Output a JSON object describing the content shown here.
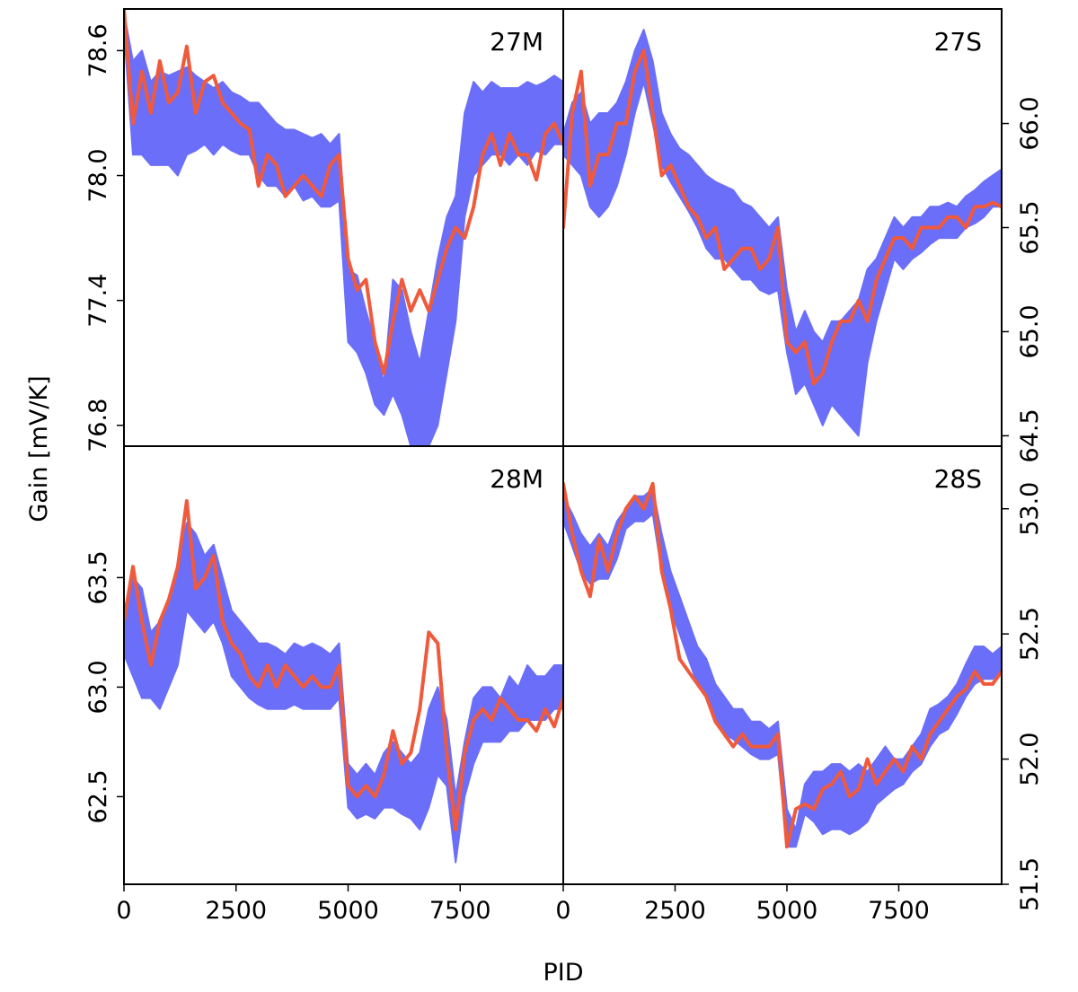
{
  "colors": {
    "band": "#6b6ef8",
    "line": "#f05a3c",
    "axes": "#000000"
  },
  "chart_data": {
    "type": "line",
    "x_label": "PID",
    "y_label": "Gain [mV/K]",
    "xlim": [
      0,
      9800
    ],
    "x_ticks": [
      0,
      2500,
      5000,
      7500
    ],
    "x_tick_labels": [
      "0",
      "2500",
      "5000",
      "7500"
    ],
    "legend": "none",
    "series_description": [
      {
        "name": "band",
        "style": "filled band (blue)"
      },
      {
        "name": "line",
        "style": "solid line (red)"
      }
    ],
    "panels": [
      {
        "label": "27M",
        "position": "top-left",
        "y_axis": "left",
        "ylim": [
          76.7,
          78.8
        ],
        "y_ticks": [
          76.8,
          77.4,
          78.0,
          78.6
        ],
        "y_tick_labels": [
          "76.8",
          "77.4",
          "78.0",
          "78.6"
        ],
        "x": [
          0,
          200,
          400,
          600,
          800,
          1000,
          1200,
          1400,
          1600,
          1800,
          2000,
          2200,
          2400,
          2600,
          2800,
          3000,
          3200,
          3400,
          3600,
          3800,
          4000,
          4200,
          4400,
          4600,
          4800,
          5000,
          5200,
          5400,
          5600,
          5800,
          6000,
          6200,
          6400,
          6600,
          6800,
          7000,
          7200,
          7400,
          7600,
          7800,
          8000,
          8200,
          8400,
          8600,
          8800,
          9000,
          9200,
          9400,
          9600,
          9800
        ],
        "band_upper": [
          78.78,
          78.55,
          78.6,
          78.45,
          78.5,
          78.48,
          78.5,
          78.52,
          78.48,
          78.45,
          78.42,
          78.45,
          78.4,
          78.38,
          78.35,
          78.35,
          78.3,
          78.25,
          78.22,
          78.22,
          78.2,
          78.18,
          78.2,
          78.15,
          78.2,
          77.55,
          77.52,
          77.35,
          77.2,
          77.0,
          77.5,
          77.45,
          77.25,
          77.1,
          77.35,
          77.6,
          77.8,
          77.9,
          78.3,
          78.45,
          78.4,
          78.45,
          78.42,
          78.42,
          78.42,
          78.45,
          78.43,
          78.45,
          78.48,
          78.45
        ],
        "band_lower": [
          78.7,
          78.1,
          78.1,
          78.05,
          78.05,
          78.05,
          78.0,
          78.1,
          78.12,
          78.15,
          78.1,
          78.15,
          78.12,
          78.1,
          78.1,
          78.0,
          77.95,
          77.95,
          77.9,
          77.95,
          77.88,
          77.9,
          77.85,
          77.85,
          77.88,
          77.2,
          77.15,
          77.05,
          76.9,
          76.85,
          76.95,
          76.85,
          76.7,
          76.7,
          76.7,
          76.8,
          77.05,
          77.3,
          77.8,
          78.0,
          78.05,
          78.1,
          78.1,
          78.05,
          78.1,
          78.05,
          78.12,
          78.1,
          78.15,
          78.15
        ],
        "line": [
          78.8,
          78.25,
          78.5,
          78.3,
          78.55,
          78.35,
          78.4,
          78.62,
          78.3,
          78.45,
          78.48,
          78.35,
          78.3,
          78.25,
          78.22,
          77.95,
          78.1,
          78.05,
          77.9,
          77.95,
          78.0,
          77.95,
          77.9,
          78.05,
          78.1,
          77.6,
          77.45,
          77.5,
          77.2,
          77.05,
          77.3,
          77.5,
          77.35,
          77.45,
          77.35,
          77.5,
          77.65,
          77.75,
          77.7,
          77.85,
          78.1,
          78.2,
          78.05,
          78.2,
          78.1,
          78.1,
          77.98,
          78.2,
          78.25,
          78.15
        ]
      },
      {
        "label": "27S",
        "position": "top-right",
        "y_axis": "right",
        "ylim": [
          64.45,
          66.55
        ],
        "y_ticks": [
          64.5,
          65.0,
          65.5,
          66.0
        ],
        "y_tick_labels": [
          "64.5",
          "65.0",
          "65.5",
          "66.0"
        ],
        "x": [
          0,
          200,
          400,
          600,
          800,
          1000,
          1200,
          1400,
          1600,
          1800,
          2000,
          2200,
          2400,
          2600,
          2800,
          3000,
          3200,
          3400,
          3600,
          3800,
          4000,
          4200,
          4400,
          4600,
          4800,
          5000,
          5200,
          5400,
          5600,
          5800,
          6000,
          6200,
          6400,
          6600,
          6800,
          7000,
          7200,
          7400,
          7600,
          7800,
          8000,
          8200,
          8400,
          8600,
          8800,
          9000,
          9200,
          9400,
          9600,
          9800
        ],
        "band_upper": [
          65.95,
          66.1,
          66.15,
          66.0,
          66.05,
          66.05,
          66.1,
          66.2,
          66.35,
          66.45,
          66.3,
          66.05,
          65.95,
          65.88,
          65.85,
          65.8,
          65.75,
          65.72,
          65.7,
          65.68,
          65.62,
          65.6,
          65.55,
          65.5,
          65.55,
          65.2,
          65.0,
          65.1,
          65.0,
          64.95,
          65.05,
          65.05,
          65.1,
          65.15,
          65.3,
          65.35,
          65.45,
          65.55,
          65.5,
          65.55,
          65.55,
          65.6,
          65.6,
          65.62,
          65.6,
          65.65,
          65.68,
          65.72,
          65.75,
          65.78
        ],
        "band_lower": [
          65.85,
          65.8,
          65.75,
          65.6,
          65.55,
          65.6,
          65.7,
          65.85,
          66.05,
          66.2,
          66.0,
          65.8,
          65.72,
          65.65,
          65.58,
          65.5,
          65.4,
          65.35,
          65.35,
          65.3,
          65.25,
          65.25,
          65.2,
          65.18,
          65.2,
          64.9,
          64.7,
          64.75,
          64.65,
          64.55,
          64.65,
          64.6,
          64.55,
          64.5,
          64.85,
          65.05,
          65.2,
          65.35,
          65.3,
          65.35,
          65.38,
          65.42,
          65.45,
          65.45,
          65.45,
          65.5,
          65.52,
          65.55,
          65.6,
          65.6
        ],
        "line": [
          65.5,
          66.05,
          66.25,
          65.7,
          65.85,
          65.85,
          66.0,
          66.0,
          66.25,
          66.35,
          66.05,
          65.75,
          65.8,
          65.7,
          65.6,
          65.55,
          65.45,
          65.5,
          65.3,
          65.35,
          65.4,
          65.4,
          65.3,
          65.35,
          65.5,
          64.95,
          64.9,
          64.95,
          64.75,
          64.8,
          64.95,
          65.05,
          65.05,
          65.15,
          65.05,
          65.25,
          65.35,
          65.45,
          65.45,
          65.4,
          65.5,
          65.5,
          65.5,
          65.55,
          65.55,
          65.5,
          65.6,
          65.6,
          65.62,
          65.6
        ]
      },
      {
        "label": "28M",
        "position": "bottom-left",
        "y_axis": "left",
        "ylim": [
          62.1,
          64.1
        ],
        "y_ticks": [
          62.5,
          63.0,
          63.5
        ],
        "y_tick_labels": [
          "62.5",
          "63.0",
          "63.5"
        ],
        "x": [
          0,
          200,
          400,
          600,
          800,
          1000,
          1200,
          1400,
          1600,
          1800,
          2000,
          2200,
          2400,
          2600,
          2800,
          3000,
          3200,
          3400,
          3600,
          3800,
          4000,
          4200,
          4400,
          4600,
          4800,
          5000,
          5200,
          5400,
          5600,
          5800,
          6000,
          6200,
          6400,
          6600,
          6800,
          7000,
          7200,
          7400,
          7600,
          7800,
          8000,
          8200,
          8400,
          8600,
          8800,
          9000,
          9200,
          9400,
          9600,
          9800
        ],
        "band_upper": [
          63.35,
          63.5,
          63.45,
          63.25,
          63.3,
          63.4,
          63.55,
          63.75,
          63.7,
          63.6,
          63.65,
          63.5,
          63.35,
          63.3,
          63.25,
          63.2,
          63.2,
          63.18,
          63.15,
          63.2,
          63.18,
          63.2,
          63.18,
          63.15,
          63.2,
          62.65,
          62.6,
          62.65,
          62.6,
          62.7,
          62.75,
          62.7,
          62.65,
          62.7,
          62.9,
          63.0,
          62.85,
          62.5,
          62.75,
          62.95,
          63.0,
          63.0,
          62.95,
          63.05,
          63.0,
          63.1,
          63.05,
          63.05,
          63.1,
          63.1
        ],
        "band_lower": [
          63.15,
          63.05,
          62.95,
          62.95,
          62.9,
          63.0,
          63.1,
          63.35,
          63.3,
          63.25,
          63.3,
          63.2,
          63.05,
          63.0,
          62.95,
          62.92,
          62.9,
          62.9,
          62.9,
          62.92,
          62.9,
          62.9,
          62.9,
          62.9,
          62.95,
          62.45,
          62.4,
          62.42,
          62.4,
          62.45,
          62.45,
          62.42,
          62.4,
          62.35,
          62.45,
          62.6,
          62.55,
          62.2,
          62.5,
          62.65,
          62.75,
          62.75,
          62.75,
          62.8,
          62.8,
          62.85,
          62.85,
          62.85,
          62.9,
          62.9
        ],
        "line": [
          63.3,
          63.55,
          63.3,
          63.1,
          63.3,
          63.4,
          63.55,
          63.85,
          63.45,
          63.5,
          63.6,
          63.3,
          63.2,
          63.15,
          63.05,
          63.0,
          63.1,
          63.0,
          63.1,
          63.05,
          63.0,
          63.05,
          63.0,
          63.0,
          63.1,
          62.55,
          62.5,
          62.55,
          62.5,
          62.6,
          62.8,
          62.65,
          62.7,
          62.9,
          63.25,
          63.2,
          62.7,
          62.35,
          62.7,
          62.85,
          62.9,
          62.85,
          62.95,
          62.9,
          62.85,
          62.85,
          62.8,
          62.9,
          62.82,
          62.95
        ]
      },
      {
        "label": "28S",
        "position": "bottom-right",
        "y_axis": "right",
        "ylim": [
          51.5,
          53.25
        ],
        "y_ticks": [
          51.5,
          52.0,
          52.5,
          53.0
        ],
        "y_tick_labels": [
          "51.5",
          "52.0",
          "52.5",
          "53.0"
        ],
        "x": [
          0,
          200,
          400,
          600,
          800,
          1000,
          1200,
          1400,
          1600,
          1800,
          2000,
          2200,
          2400,
          2600,
          2800,
          3000,
          3200,
          3400,
          3600,
          3800,
          4000,
          4200,
          4400,
          4600,
          4800,
          5000,
          5200,
          5400,
          5600,
          5800,
          6000,
          6200,
          6400,
          6600,
          6800,
          7000,
          7200,
          7400,
          7600,
          7800,
          8000,
          8200,
          8400,
          8600,
          8800,
          9000,
          9200,
          9400,
          9600,
          9800
        ],
        "band_upper": [
          53.05,
          52.98,
          52.9,
          52.85,
          52.9,
          52.85,
          52.95,
          53.0,
          53.05,
          53.05,
          53.08,
          52.9,
          52.75,
          52.65,
          52.55,
          52.45,
          52.4,
          52.3,
          52.25,
          52.2,
          52.2,
          52.15,
          52.15,
          52.12,
          52.15,
          51.8,
          51.72,
          51.9,
          51.95,
          51.95,
          51.98,
          51.98,
          51.95,
          51.98,
          51.95,
          52.0,
          52.05,
          52.0,
          52.0,
          52.05,
          52.1,
          52.2,
          52.22,
          52.25,
          52.3,
          52.38,
          52.45,
          52.45,
          52.42,
          52.45
        ],
        "band_lower": [
          52.95,
          52.85,
          52.75,
          52.7,
          52.72,
          52.72,
          52.8,
          52.92,
          52.95,
          52.95,
          52.98,
          52.75,
          52.6,
          52.5,
          52.4,
          52.3,
          52.25,
          52.15,
          52.1,
          52.08,
          52.05,
          52.02,
          52.0,
          52.0,
          52.02,
          51.65,
          51.65,
          51.78,
          51.75,
          51.7,
          51.72,
          51.72,
          51.7,
          51.72,
          51.75,
          51.82,
          51.85,
          51.88,
          51.9,
          51.95,
          51.98,
          52.05,
          52.1,
          52.12,
          52.18,
          52.25,
          52.3,
          52.32,
          52.32,
          52.35
        ],
        "line": [
          53.1,
          52.9,
          52.75,
          52.65,
          52.88,
          52.75,
          52.9,
          53.0,
          53.05,
          53.0,
          53.1,
          52.75,
          52.6,
          52.4,
          52.35,
          52.3,
          52.25,
          52.15,
          52.1,
          52.05,
          52.1,
          52.05,
          52.05,
          52.05,
          52.1,
          51.65,
          51.8,
          51.82,
          51.8,
          51.88,
          51.9,
          51.95,
          51.85,
          51.88,
          52.0,
          51.9,
          51.95,
          52.0,
          51.95,
          52.05,
          52.0,
          52.1,
          52.15,
          52.2,
          52.25,
          52.28,
          52.35,
          52.3,
          52.3,
          52.35
        ]
      }
    ]
  }
}
